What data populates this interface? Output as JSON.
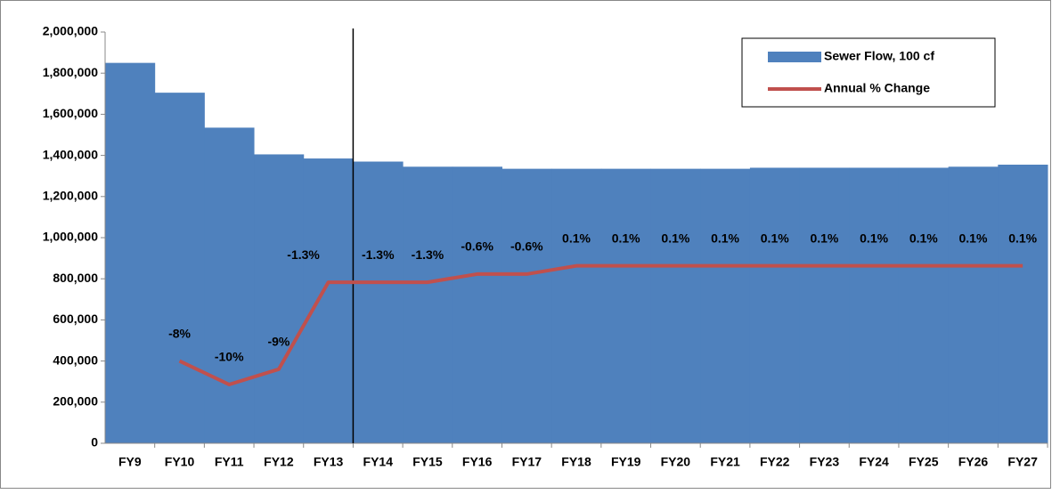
{
  "chart_data": {
    "type": "bar_line",
    "categories": [
      "FY9",
      "FY10",
      "FY11",
      "FY12",
      "FY13",
      "FY14",
      "FY15",
      "FY16",
      "FY17",
      "FY18",
      "FY19",
      "FY20",
      "FY21",
      "FY22",
      "FY23",
      "FY24",
      "FY25",
      "FY26",
      "FY27"
    ],
    "series": [
      {
        "name": "Sewer Flow, 100 cf",
        "type": "bar",
        "color": "#4f81bd",
        "values": [
          1850000,
          1705000,
          1535000,
          1405000,
          1385000,
          1370000,
          1345000,
          1345000,
          1335000,
          1335000,
          1335000,
          1335000,
          1335000,
          1340000,
          1340000,
          1340000,
          1340000,
          1345000,
          1355000
        ]
      },
      {
        "name": "Annual % Change",
        "type": "line",
        "color": "#c0504d",
        "axis": "y2",
        "values": [
          null,
          -8,
          -10,
          -8.7,
          -1.3,
          -1.3,
          -1.3,
          -0.6,
          -0.6,
          0.1,
          0.1,
          0.1,
          0.1,
          0.1,
          0.1,
          0.1,
          0.1,
          0.1,
          0.1
        ],
        "value_labels": [
          null,
          "-8%",
          "-10%",
          "-9%",
          "-1.3%",
          "-1.3%",
          "-1.3%",
          "-0.6%",
          "-0.6%",
          "0.1%",
          "0.1%",
          "0.1%",
          "0.1%",
          "0.1%",
          "0.1%",
          "0.1%",
          "0.1%",
          "0.1%",
          "0.1%"
        ]
      }
    ],
    "ylim": [
      0,
      2000000
    ],
    "yticks": [
      0,
      {
        "value": 200000,
        "label": "200,000"
      },
      {
        "value": 400000,
        "label": "400,000"
      },
      {
        "value": 600000,
        "label": "600,000"
      },
      {
        "value": 800000,
        "label": "800,000"
      },
      {
        "value": 1000000,
        "label": "1,000,000"
      },
      {
        "value": 1200000,
        "label": "1,200,000"
      },
      {
        "value": 1400000,
        "label": "1,400,000"
      },
      {
        "value": 1600000,
        "label": "1,600,000"
      },
      {
        "value": 1800000,
        "label": "1,800,000"
      },
      {
        "value": 2000000,
        "label": "2,000,000"
      }
    ],
    "y2lim": [
      -15,
      20
    ],
    "legend": "upper right"
  }
}
